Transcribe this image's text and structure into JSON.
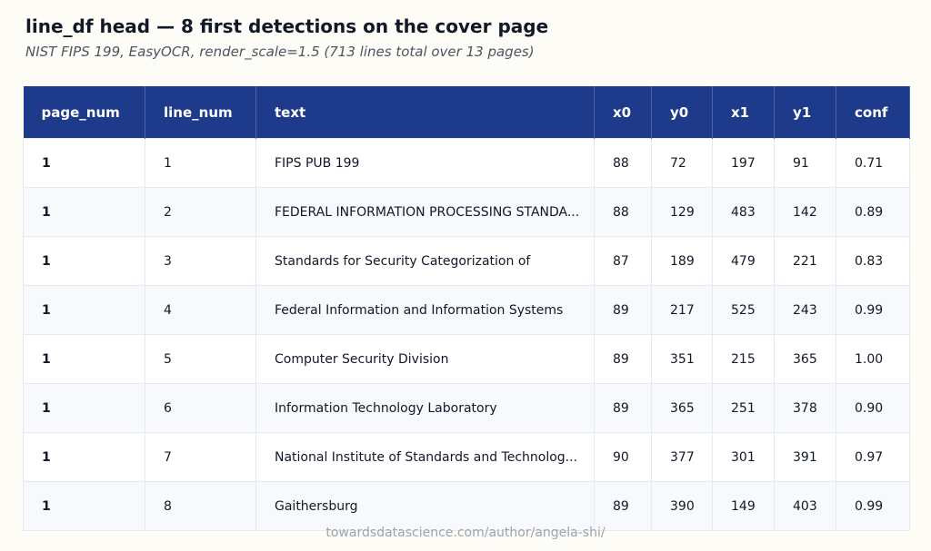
{
  "header": {
    "title": "line_df head — 8 first detections on the cover page",
    "subtitle": "NIST FIPS 199, EasyOCR, render_scale=1.5 (713 lines total over 13 pages)"
  },
  "table": {
    "columns": [
      "page_num",
      "line_num",
      "text",
      "x0",
      "y0",
      "x1",
      "y1",
      "conf"
    ],
    "rows": [
      [
        "1",
        "1",
        "FIPS PUB 199",
        "88",
        "72",
        "197",
        "91",
        "0.71"
      ],
      [
        "1",
        "2",
        "FEDERAL INFORMATION PROCESSING STANDA...",
        "88",
        "129",
        "483",
        "142",
        "0.89"
      ],
      [
        "1",
        "3",
        "Standards for Security Categorization of",
        "87",
        "189",
        "479",
        "221",
        "0.83"
      ],
      [
        "1",
        "4",
        "Federal Information and Information Systems",
        "89",
        "217",
        "525",
        "243",
        "0.99"
      ],
      [
        "1",
        "5",
        "Computer Security Division",
        "89",
        "351",
        "215",
        "365",
        "1.00"
      ],
      [
        "1",
        "6",
        "Information Technology Laboratory",
        "89",
        "365",
        "251",
        "378",
        "0.90"
      ],
      [
        "1",
        "7",
        "National Institute of Standards and Technolog...",
        "90",
        "377",
        "301",
        "391",
        "0.97"
      ],
      [
        "1",
        "8",
        "Gaithersburg",
        "89",
        "390",
        "149",
        "403",
        "0.99"
      ]
    ]
  },
  "footer": {
    "text": "towardsdatascience.com/author/angela-shi/"
  }
}
